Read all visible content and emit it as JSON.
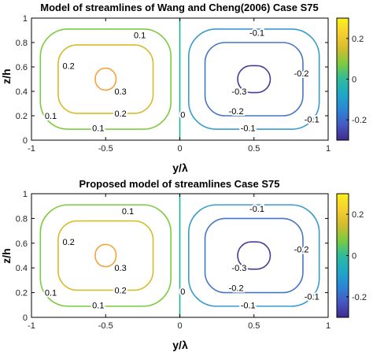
{
  "chart_data": [
    {
      "type": "contour",
      "title": "Model of streamlines of Wang and Cheng(2006) Case S75",
      "xlabel": "y/λ",
      "ylabel": "z/h",
      "xlim": [
        -1,
        1
      ],
      "ylim": [
        0,
        1
      ],
      "xticks": [
        "-1",
        "-0.5",
        "0",
        "0.5",
        "1"
      ],
      "yticks": [
        "0",
        "0.2",
        "0.4",
        "0.6",
        "0.8",
        "1"
      ],
      "colorbar": {
        "range": [
          -0.3,
          0.3
        ],
        "ticks": [
          "0.2",
          "0",
          "-0.2"
        ]
      },
      "levels": [
        {
          "value": 0.1,
          "color": "#7ccb3f",
          "center": [
            -0.5,
            0.5
          ],
          "half_width": 0.44,
          "half_height": 0.41,
          "labels": [
            {
              "text": "0.1",
              "x": -0.27,
              "y": 0.86
            },
            {
              "text": "0.1",
              "x": -0.87,
              "y": 0.2
            },
            {
              "text": "0.1",
              "x": -0.55,
              "y": 0.1
            }
          ]
        },
        {
          "value": 0.2,
          "color": "#d4bc2d",
          "center": [
            -0.5,
            0.5
          ],
          "half_width": 0.32,
          "half_height": 0.28,
          "labels": [
            {
              "text": "0.2",
              "x": -0.75,
              "y": 0.61
            },
            {
              "text": "0.2",
              "x": -0.4,
              "y": 0.22
            }
          ]
        },
        {
          "value": 0.3,
          "color": "#f2a33a",
          "center": [
            -0.5,
            0.5
          ],
          "half_width": 0.07,
          "half_height": 0.09,
          "labels": [
            {
              "text": "0.3",
              "x": -0.4,
              "y": 0.4
            }
          ]
        },
        {
          "value": -0.1,
          "color": "#3a9bcf",
          "center": [
            0.5,
            0.5
          ],
          "half_width": 0.44,
          "half_height": 0.41,
          "labels": [
            {
              "text": "-0.1",
              "x": 0.52,
              "y": 0.88
            },
            {
              "text": "-0.1",
              "x": 0.89,
              "y": 0.17
            },
            {
              "text": "-0.1",
              "x": 0.46,
              "y": 0.1
            }
          ]
        },
        {
          "value": -0.2,
          "color": "#4576c4",
          "center": [
            0.5,
            0.5
          ],
          "half_width": 0.33,
          "half_height": 0.3,
          "labels": [
            {
              "text": "-0.2",
              "x": 0.82,
              "y": 0.55
            },
            {
              "text": "-0.2",
              "x": 0.38,
              "y": 0.24
            }
          ]
        },
        {
          "value": -0.3,
          "color": "#4a3a99",
          "center": [
            0.5,
            0.5
          ],
          "half_width": 0.11,
          "half_height": 0.11,
          "labels": [
            {
              "text": "-0.3",
              "x": 0.4,
              "y": 0.4
            }
          ]
        },
        {
          "value": 0,
          "color": "#1cb59c",
          "line_x": 0,
          "labels": [
            {
              "text": "0",
              "x": 0.02,
              "y": 0.21
            }
          ]
        }
      ]
    },
    {
      "type": "contour",
      "title": "Proposed model of streamlines Case S75",
      "xlabel": "y/λ",
      "ylabel": "z/h",
      "xlim": [
        -1,
        1
      ],
      "ylim": [
        0,
        1
      ],
      "xticks": [
        "-1",
        "-0.5",
        "0",
        "0.5",
        "1"
      ],
      "yticks": [
        "0",
        "0.2",
        "0.4",
        "0.6",
        "0.8",
        "1"
      ],
      "colorbar": {
        "range": [
          -0.3,
          0.3
        ],
        "ticks": [
          "0.2",
          "0",
          "-0.2"
        ]
      },
      "levels": [
        {
          "value": 0.1,
          "color": "#7ccb3f",
          "center": [
            -0.5,
            0.5
          ],
          "half_width": 0.44,
          "half_height": 0.41,
          "labels": [
            {
              "text": "0.1",
              "x": -0.35,
              "y": 0.86
            },
            {
              "text": "0.1",
              "x": -0.87,
              "y": 0.2
            },
            {
              "text": "0.1",
              "x": -0.55,
              "y": 0.1
            }
          ]
        },
        {
          "value": 0.2,
          "color": "#d4bc2d",
          "center": [
            -0.5,
            0.5
          ],
          "half_width": 0.32,
          "half_height": 0.28,
          "labels": [
            {
              "text": "0.2",
              "x": -0.75,
              "y": 0.61
            },
            {
              "text": "0.2",
              "x": -0.4,
              "y": 0.22
            }
          ]
        },
        {
          "value": 0.3,
          "color": "#f2a33a",
          "center": [
            -0.5,
            0.5
          ],
          "half_width": 0.07,
          "half_height": 0.09,
          "labels": [
            {
              "text": "0.3",
              "x": -0.4,
              "y": 0.4
            }
          ]
        },
        {
          "value": -0.1,
          "color": "#3a9bcf",
          "center": [
            0.5,
            0.5
          ],
          "half_width": 0.44,
          "half_height": 0.41,
          "labels": [
            {
              "text": "-0.1",
              "x": 0.52,
              "y": 0.88
            },
            {
              "text": "-0.1",
              "x": 0.89,
              "y": 0.17
            },
            {
              "text": "-0.1",
              "x": 0.46,
              "y": 0.1
            }
          ]
        },
        {
          "value": -0.2,
          "color": "#4576c4",
          "center": [
            0.5,
            0.5
          ],
          "half_width": 0.33,
          "half_height": 0.3,
          "labels": [
            {
              "text": "-0.2",
              "x": 0.82,
              "y": 0.55
            },
            {
              "text": "-0.2",
              "x": 0.38,
              "y": 0.24
            }
          ]
        },
        {
          "value": -0.3,
          "color": "#4a3a99",
          "center": [
            0.5,
            0.5
          ],
          "half_width": 0.11,
          "half_height": 0.11,
          "labels": [
            {
              "text": "-0.3",
              "x": 0.4,
              "y": 0.4
            }
          ]
        },
        {
          "value": 0,
          "color": "#1cb59c",
          "line_x": 0,
          "labels": [
            {
              "text": "0",
              "x": 0.02,
              "y": 0.21
            }
          ]
        }
      ]
    }
  ],
  "colors": {
    "colormap": [
      "#3f2b8c",
      "#4659c3",
      "#2a86d6",
      "#1ea8c8",
      "#2ebb9c",
      "#7ccb3f",
      "#d4bc2d",
      "#f8ce2f",
      "#f9f21c"
    ]
  }
}
